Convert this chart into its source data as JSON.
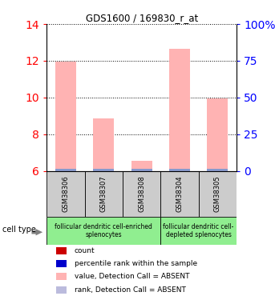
{
  "title": "GDS1600 / 169830_r_at",
  "samples": [
    "GSM38306",
    "GSM38307",
    "GSM38308",
    "GSM38304",
    "GSM38305"
  ],
  "values": [
    11.95,
    8.85,
    6.55,
    12.65,
    9.95
  ],
  "ylim_left": [
    6,
    14
  ],
  "yticks_left": [
    6,
    8,
    10,
    12,
    14
  ],
  "ylim_right": [
    0,
    100
  ],
  "yticks_right": [
    0,
    25,
    50,
    75,
    100
  ],
  "bar_color": "#FFB3B3",
  "rank_color": "#8899CC",
  "groups": [
    {
      "label": "follicular dendritic cell-enriched\nsplenocytes",
      "n_samples": 3,
      "color": "#90EE90"
    },
    {
      "label": "follicular dendritic cell-\ndepleted splenocytes",
      "n_samples": 2,
      "color": "#90EE90"
    }
  ],
  "sample_box_color": "#CCCCCC",
  "legend_items": [
    {
      "color": "#CC0000",
      "label": "count"
    },
    {
      "color": "#0000CC",
      "label": "percentile rank within the sample"
    },
    {
      "color": "#FFB3B3",
      "label": "value, Detection Call = ABSENT"
    },
    {
      "color": "#BBBBDD",
      "label": "rank, Detection Call = ABSENT"
    }
  ],
  "cell_type_label": "cell type",
  "figsize": [
    3.43,
    3.75
  ],
  "dpi": 100
}
